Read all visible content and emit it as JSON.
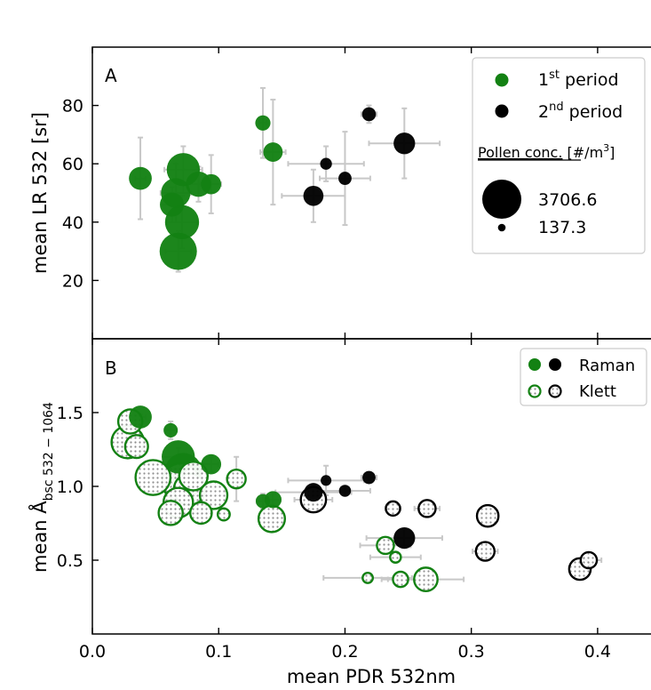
{
  "colors": {
    "green": "#138113",
    "black": "#000000",
    "errorbar": "#c8c8c8",
    "dots": "#8c8c8c"
  },
  "chart_data": [
    {
      "panel": "A",
      "type": "scatter",
      "ylabel": "mean LR 532 [sr]",
      "xlim": [
        0,
        0.45
      ],
      "ylim": [
        0,
        100
      ],
      "yticks": [
        20,
        40,
        60,
        80
      ],
      "grid": false,
      "legend": {
        "placement": "top-right",
        "entries": [
          {
            "label": "1",
            "sup": "st",
            "suffix": " period",
            "color": "green"
          },
          {
            "label": "2",
            "sup": "nd",
            "suffix": " period",
            "color": "black"
          }
        ],
        "size_title": "Pollen conc.",
        "size_title_unit": "[#/m",
        "size_title_sup": "3",
        "size_title_close": "]",
        "sizes": [
          {
            "label": "3706.6",
            "conc": 3706.6
          },
          {
            "label": "137.3",
            "conc": 137.3
          }
        ]
      },
      "series": [
        {
          "name": "1st period",
          "color": "green",
          "points": [
            {
              "x": 0.038,
              "y": 55,
              "xerr": 0.004,
              "yerr": 14,
              "conc": 900
            },
            {
              "x": 0.072,
              "y": 58,
              "xerr": 0.015,
              "yerr": 8,
              "conc": 1900
            },
            {
              "x": 0.066,
              "y": 50,
              "xerr": 0.012,
              "yerr": 10,
              "conc": 1500
            },
            {
              "x": 0.063,
              "y": 46,
              "xerr": 0.008,
              "yerr": 6,
              "conc": 1000
            },
            {
              "x": 0.084,
              "y": 53,
              "xerr": 0.008,
              "yerr": 6,
              "conc": 1100
            },
            {
              "x": 0.094,
              "y": 53,
              "xerr": 0.008,
              "yerr": 10,
              "conc": 700
            },
            {
              "x": 0.071,
              "y": 40,
              "xerr": 0.012,
              "yerr": 9,
              "conc": 2000
            },
            {
              "x": 0.068,
              "y": 30,
              "xerr": 0.01,
              "yerr": 7,
              "conc": 2400
            },
            {
              "x": 0.135,
              "y": 74,
              "xerr": 0.003,
              "yerr": 12,
              "conc": 400
            },
            {
              "x": 0.143,
              "y": 64,
              "xerr": 0.01,
              "yerr": 18,
              "conc": 650
            }
          ]
        },
        {
          "name": "2nd period",
          "color": "black",
          "points": [
            {
              "x": 0.175,
              "y": 49,
              "xerr": 0.025,
              "yerr": 9,
              "conc": 700
            },
            {
              "x": 0.185,
              "y": 60,
              "xerr": 0.03,
              "yerr": 6,
              "conc": 240
            },
            {
              "x": 0.2,
              "y": 55,
              "xerr": 0.02,
              "yerr": 16,
              "conc": 300
            },
            {
              "x": 0.219,
              "y": 77,
              "xerr": 0.006,
              "yerr": 3,
              "conc": 330
            },
            {
              "x": 0.247,
              "y": 67,
              "xerr": 0.028,
              "yerr": 12,
              "conc": 800
            }
          ]
        }
      ]
    },
    {
      "panel": "B",
      "type": "scatter",
      "ylabel_prefix": "mean Å",
      "ylabel_sub": "bsc 532 − 1064",
      "xlabel": "mean PDR 532nm",
      "xlim": [
        0,
        0.45
      ],
      "ylim": [
        0,
        2.0
      ],
      "xticks": [
        0.0,
        0.1,
        0.2,
        0.3,
        0.4
      ],
      "xticklabels": [
        "0.0",
        "0.1",
        "0.2",
        "0.3",
        "0.4"
      ],
      "yticks": [
        0.5,
        1.0,
        1.5
      ],
      "yticklabels": [
        "0.5",
        "1.0",
        "1.5"
      ],
      "grid": false,
      "legend": {
        "placement": "top-right",
        "entries": [
          {
            "label": "Raman",
            "style": "filled"
          },
          {
            "label": "Klett",
            "style": "hatched"
          }
        ]
      },
      "series": [
        {
          "name": "Raman",
          "style": "filled",
          "points": [
            {
              "x": 0.038,
              "y": 1.47,
              "xerr": 0.004,
              "yerr": 0.02,
              "conc": 900,
              "color": "green"
            },
            {
              "x": 0.062,
              "y": 1.38,
              "xerr": 0.004,
              "yerr": 0.06,
              "conc": 350,
              "color": "green"
            },
            {
              "x": 0.068,
              "y": 1.2,
              "xerr": 0.012,
              "yerr": 0.06,
              "conc": 1900,
              "color": "green"
            },
            {
              "x": 0.072,
              "y": 1.1,
              "xerr": 0.015,
              "yerr": 0.1,
              "conc": 2400,
              "color": "green"
            },
            {
              "x": 0.094,
              "y": 1.15,
              "xerr": 0.006,
              "yerr": 0.05,
              "conc": 700,
              "color": "green"
            },
            {
              "x": 0.135,
              "y": 0.9,
              "xerr": 0.005,
              "yerr": 0.05,
              "conc": 350,
              "color": "green"
            },
            {
              "x": 0.143,
              "y": 0.91,
              "xerr": 0.006,
              "yerr": 0.05,
              "conc": 500,
              "color": "green"
            },
            {
              "x": 0.175,
              "y": 0.96,
              "xerr": 0.03,
              "yerr": 0.05,
              "conc": 600,
              "color": "black"
            },
            {
              "x": 0.185,
              "y": 1.04,
              "xerr": 0.03,
              "yerr": 0.1,
              "conc": 200,
              "color": "black"
            },
            {
              "x": 0.2,
              "y": 0.97,
              "xerr": 0.02,
              "yerr": 0.03,
              "conc": 250,
              "color": "black"
            },
            {
              "x": 0.219,
              "y": 1.06,
              "xerr": 0.006,
              "yerr": 0.02,
              "conc": 300,
              "color": "black"
            },
            {
              "x": 0.247,
              "y": 0.65,
              "xerr": 0.03,
              "yerr": 0.06,
              "conc": 800,
              "color": "black"
            }
          ]
        },
        {
          "name": "Klett",
          "style": "hatched",
          "points": [
            {
              "x": 0.03,
              "y": 1.44,
              "xerr": 0.004,
              "yerr": 0.03,
              "conc": 1000,
              "color": "green"
            },
            {
              "x": 0.028,
              "y": 1.3,
              "xerr": 0.006,
              "yerr": 0.04,
              "conc": 1800,
              "color": "green"
            },
            {
              "x": 0.035,
              "y": 1.27,
              "xerr": 0.004,
              "yerr": 0.03,
              "conc": 900,
              "color": "green"
            },
            {
              "x": 0.048,
              "y": 1.06,
              "xerr": 0.008,
              "yerr": 0.05,
              "conc": 2100,
              "color": "green"
            },
            {
              "x": 0.07,
              "y": 1.03,
              "xerr": 0.01,
              "yerr": 0.06,
              "conc": 2400,
              "color": "green"
            },
            {
              "x": 0.08,
              "y": 1.07,
              "xerr": 0.01,
              "yerr": 0.06,
              "conc": 1400,
              "color": "green"
            },
            {
              "x": 0.077,
              "y": 0.98,
              "xerr": 0.012,
              "yerr": 0.06,
              "conc": 1700,
              "color": "green"
            },
            {
              "x": 0.096,
              "y": 0.94,
              "xerr": 0.008,
              "yerr": 0.05,
              "conc": 1300,
              "color": "green"
            },
            {
              "x": 0.068,
              "y": 0.89,
              "xerr": 0.01,
              "yerr": 0.06,
              "conc": 1500,
              "color": "green"
            },
            {
              "x": 0.062,
              "y": 0.82,
              "xerr": 0.008,
              "yerr": 0.06,
              "conc": 1000,
              "color": "green"
            },
            {
              "x": 0.086,
              "y": 0.82,
              "xerr": 0.008,
              "yerr": 0.04,
              "conc": 800,
              "color": "green"
            },
            {
              "x": 0.104,
              "y": 0.81,
              "xerr": 0.004,
              "yerr": 0.03,
              "conc": 250,
              "color": "green"
            },
            {
              "x": 0.114,
              "y": 1.05,
              "xerr": 0.006,
              "yerr": 0.15,
              "conc": 600,
              "color": "green"
            },
            {
              "x": 0.142,
              "y": 0.78,
              "xerr": 0.008,
              "yerr": 0.06,
              "conc": 1200,
              "color": "green"
            },
            {
              "x": 0.232,
              "y": 0.6,
              "xerr": 0.02,
              "yerr": 0.04,
              "conc": 500,
              "color": "green"
            },
            {
              "x": 0.24,
              "y": 0.52,
              "xerr": 0.02,
              "yerr": 0.03,
              "conc": 200,
              "color": "green"
            },
            {
              "x": 0.218,
              "y": 0.38,
              "xerr": 0.035,
              "yerr": 0.03,
              "conc": 180,
              "color": "green"
            },
            {
              "x": 0.244,
              "y": 0.37,
              "xerr": 0.015,
              "yerr": 0.02,
              "conc": 400,
              "color": "green"
            },
            {
              "x": 0.264,
              "y": 0.37,
              "xerr": 0.03,
              "yerr": 0.03,
              "conc": 950,
              "color": "green"
            },
            {
              "x": 0.175,
              "y": 0.91,
              "xerr": 0.015,
              "yerr": 0.04,
              "conc": 1100,
              "color": "black"
            },
            {
              "x": 0.238,
              "y": 0.85,
              "xerr": 0.006,
              "yerr": 0.03,
              "conc": 350,
              "color": "black"
            },
            {
              "x": 0.265,
              "y": 0.85,
              "xerr": 0.01,
              "yerr": 0.03,
              "conc": 500,
              "color": "black"
            },
            {
              "x": 0.313,
              "y": 0.8,
              "xerr": 0.006,
              "yerr": 0.04,
              "conc": 800,
              "color": "black"
            },
            {
              "x": 0.311,
              "y": 0.56,
              "xerr": 0.01,
              "yerr": 0.03,
              "conc": 600,
              "color": "black"
            },
            {
              "x": 0.386,
              "y": 0.44,
              "xerr": 0.008,
              "yerr": 0.03,
              "conc": 800,
              "color": "black"
            },
            {
              "x": 0.393,
              "y": 0.5,
              "xerr": 0.01,
              "yerr": 0.03,
              "conc": 450,
              "color": "black"
            }
          ]
        }
      ]
    }
  ]
}
